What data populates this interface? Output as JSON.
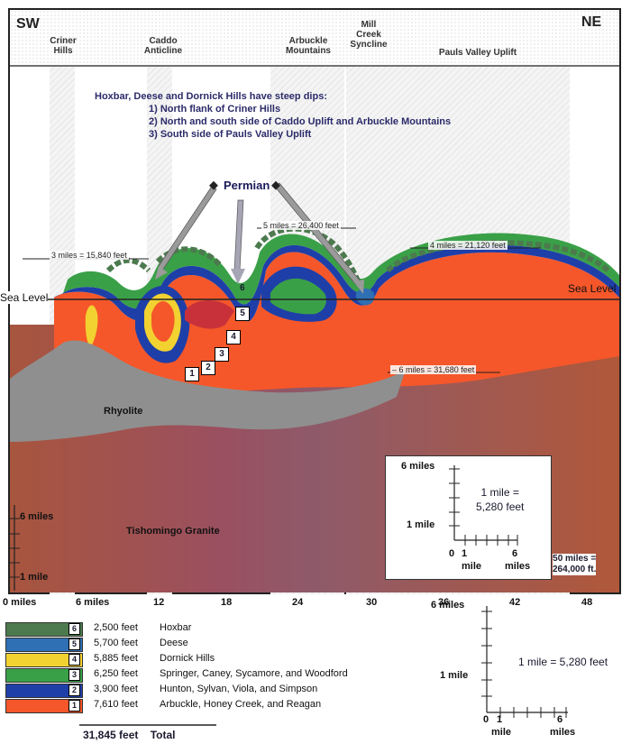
{
  "direction": {
    "left": "SW",
    "right": "NE"
  },
  "headers": [
    {
      "id": "criner",
      "label": "Criner\nHills"
    },
    {
      "id": "caddo",
      "label": "Caddo\nAnticline"
    },
    {
      "id": "arbuckle",
      "label": "Arbuckle\nMountains"
    },
    {
      "id": "mill",
      "label": "Mill\nCreek\nSyncline"
    },
    {
      "id": "pauls",
      "label": "Pauls Valley Uplift"
    }
  ],
  "note": {
    "title": "Hoxbar, Deese and Dornick Hills have steep dips:",
    "items": [
      "1) North flank of Criner Hills",
      "2) North and south side of Caddo Uplift and Arbuckle Mountains",
      "3) South side of Pauls Valley Uplift"
    ]
  },
  "permian": "Permian",
  "sea_level": "Sea Level",
  "measurements": {
    "m3": "3 miles = 15,840 feet",
    "m5": "5 miles = 26,400 feet",
    "m4": "4 miles = 21,120 feet",
    "m6": "– 6 miles = 31,680 feet"
  },
  "layer_numbers": [
    "1",
    "2",
    "3",
    "4",
    "5",
    "6"
  ],
  "rock_labels": {
    "rhyolite": "Rhyolite",
    "granite": "Tishomingo Granite"
  },
  "left_scale": {
    "top": "6 miles",
    "bottom": "1 mile"
  },
  "inset": {
    "top": "6 miles",
    "mid": "1 mile",
    "zero": "0",
    "one": "1",
    "one_unit": "mile",
    "six": "6",
    "six_unit": "miles",
    "eq": "1 mile =\n5,280 feet"
  },
  "fifty": "50 miles =\n264,000 ft.",
  "x_axis": [
    "0 miles",
    "6 miles",
    "12",
    "18",
    "24",
    "30",
    "36",
    "42",
    "48"
  ],
  "legend": [
    {
      "num": "6",
      "thickness": "2,500 feet",
      "name": "Hoxbar",
      "color": "#4c7a4e"
    },
    {
      "num": "5",
      "thickness": "5,700 feet",
      "name": "Deese",
      "color": "#2f6fb3"
    },
    {
      "num": "4",
      "thickness": "5,885 feet",
      "name": "Dornick Hills",
      "color": "#f2d230"
    },
    {
      "num": "3",
      "thickness": "6,250 feet",
      "name": "Springer, Caney, Sycamore, and Woodford",
      "color": "#3aa048"
    },
    {
      "num": "2",
      "thickness": "3,900 feet",
      "name": "Hunton, Sylvan, Viola, and Simpson",
      "color": "#1f3fa8"
    },
    {
      "num": "1",
      "thickness": "7,610 feet",
      "name": "Arbuckle, Honey Creek, and Reagan",
      "color": "#f5572a"
    }
  ],
  "total": {
    "value": "31,845 feet",
    "label": "Total"
  },
  "bottom_scale": {
    "top": "6 miles",
    "mid": "1 mile",
    "zero": "0",
    "one": "1",
    "one_unit": "mile",
    "six": "6",
    "six_unit": "miles",
    "eq": "1 mile = 5,280 feet"
  }
}
